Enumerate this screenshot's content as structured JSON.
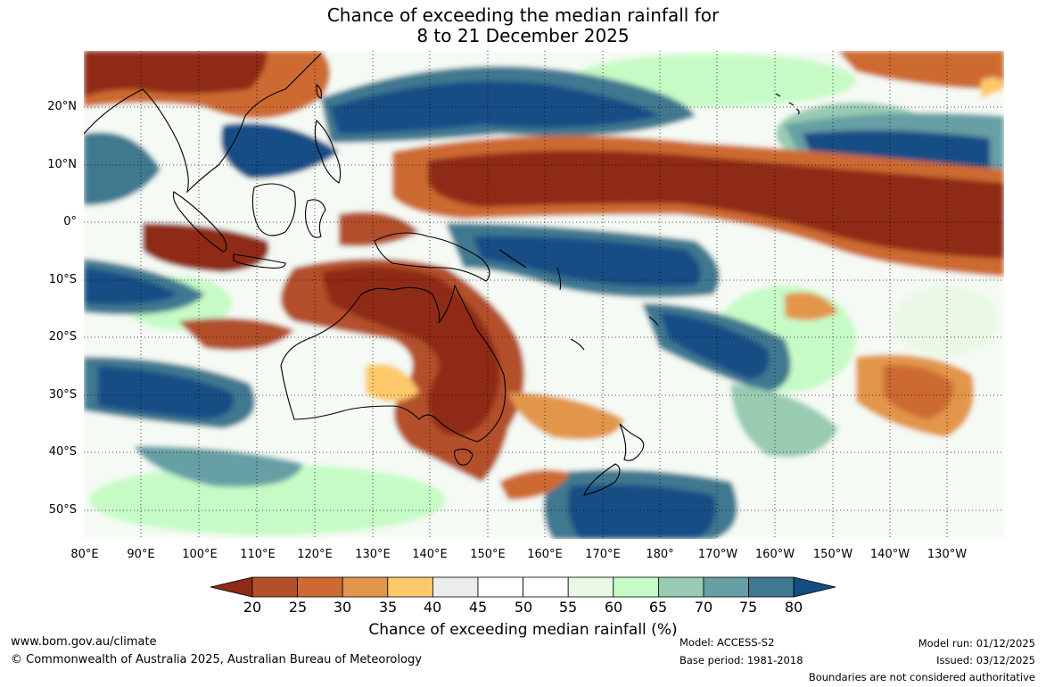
{
  "title_line1": "Chance of exceeding the median rainfall for",
  "title_line2": "8 to 21 December 2025",
  "lat_labels": [
    "20°N",
    "10°N",
    "0°",
    "10°S",
    "20°S",
    "30°S",
    "40°S",
    "50°S"
  ],
  "lon_labels": [
    "80°E",
    "90°E",
    "100°E",
    "110°E",
    "120°E",
    "130°E",
    "140°E",
    "150°E",
    "160°E",
    "170°E",
    "180°",
    "170°W",
    "160°W",
    "150°W",
    "140°W",
    "130°W"
  ],
  "colorbar": {
    "label": "Chance of exceeding median rainfall (%)",
    "ticks": [
      "20",
      "25",
      "30",
      "35",
      "40",
      "45",
      "50",
      "55",
      "60",
      "65",
      "70",
      "75",
      "80"
    ],
    "colors": [
      "#8e2a17",
      "#b3502a",
      "#cd6a33",
      "#e2964b",
      "#fdc96a",
      "#ececea",
      "#ffffff",
      "#ffffff",
      "#e9f9e6",
      "#c6fbc6",
      "#98cbb2",
      "#669fa4",
      "#3f7890",
      "#124d85"
    ]
  },
  "footer": {
    "url": "www.bom.gov.au/climate",
    "copyright": "© Commonwealth of Australia 2025, Australian Bureau of Meteorology",
    "model": "Model: ACCESS-S2",
    "base_period": "Base period: 1981-2018",
    "model_run": "Model run: 01/12/2025",
    "issued": "Issued: 03/12/2025",
    "disclaimer": "Boundaries are not considered authoritative"
  }
}
